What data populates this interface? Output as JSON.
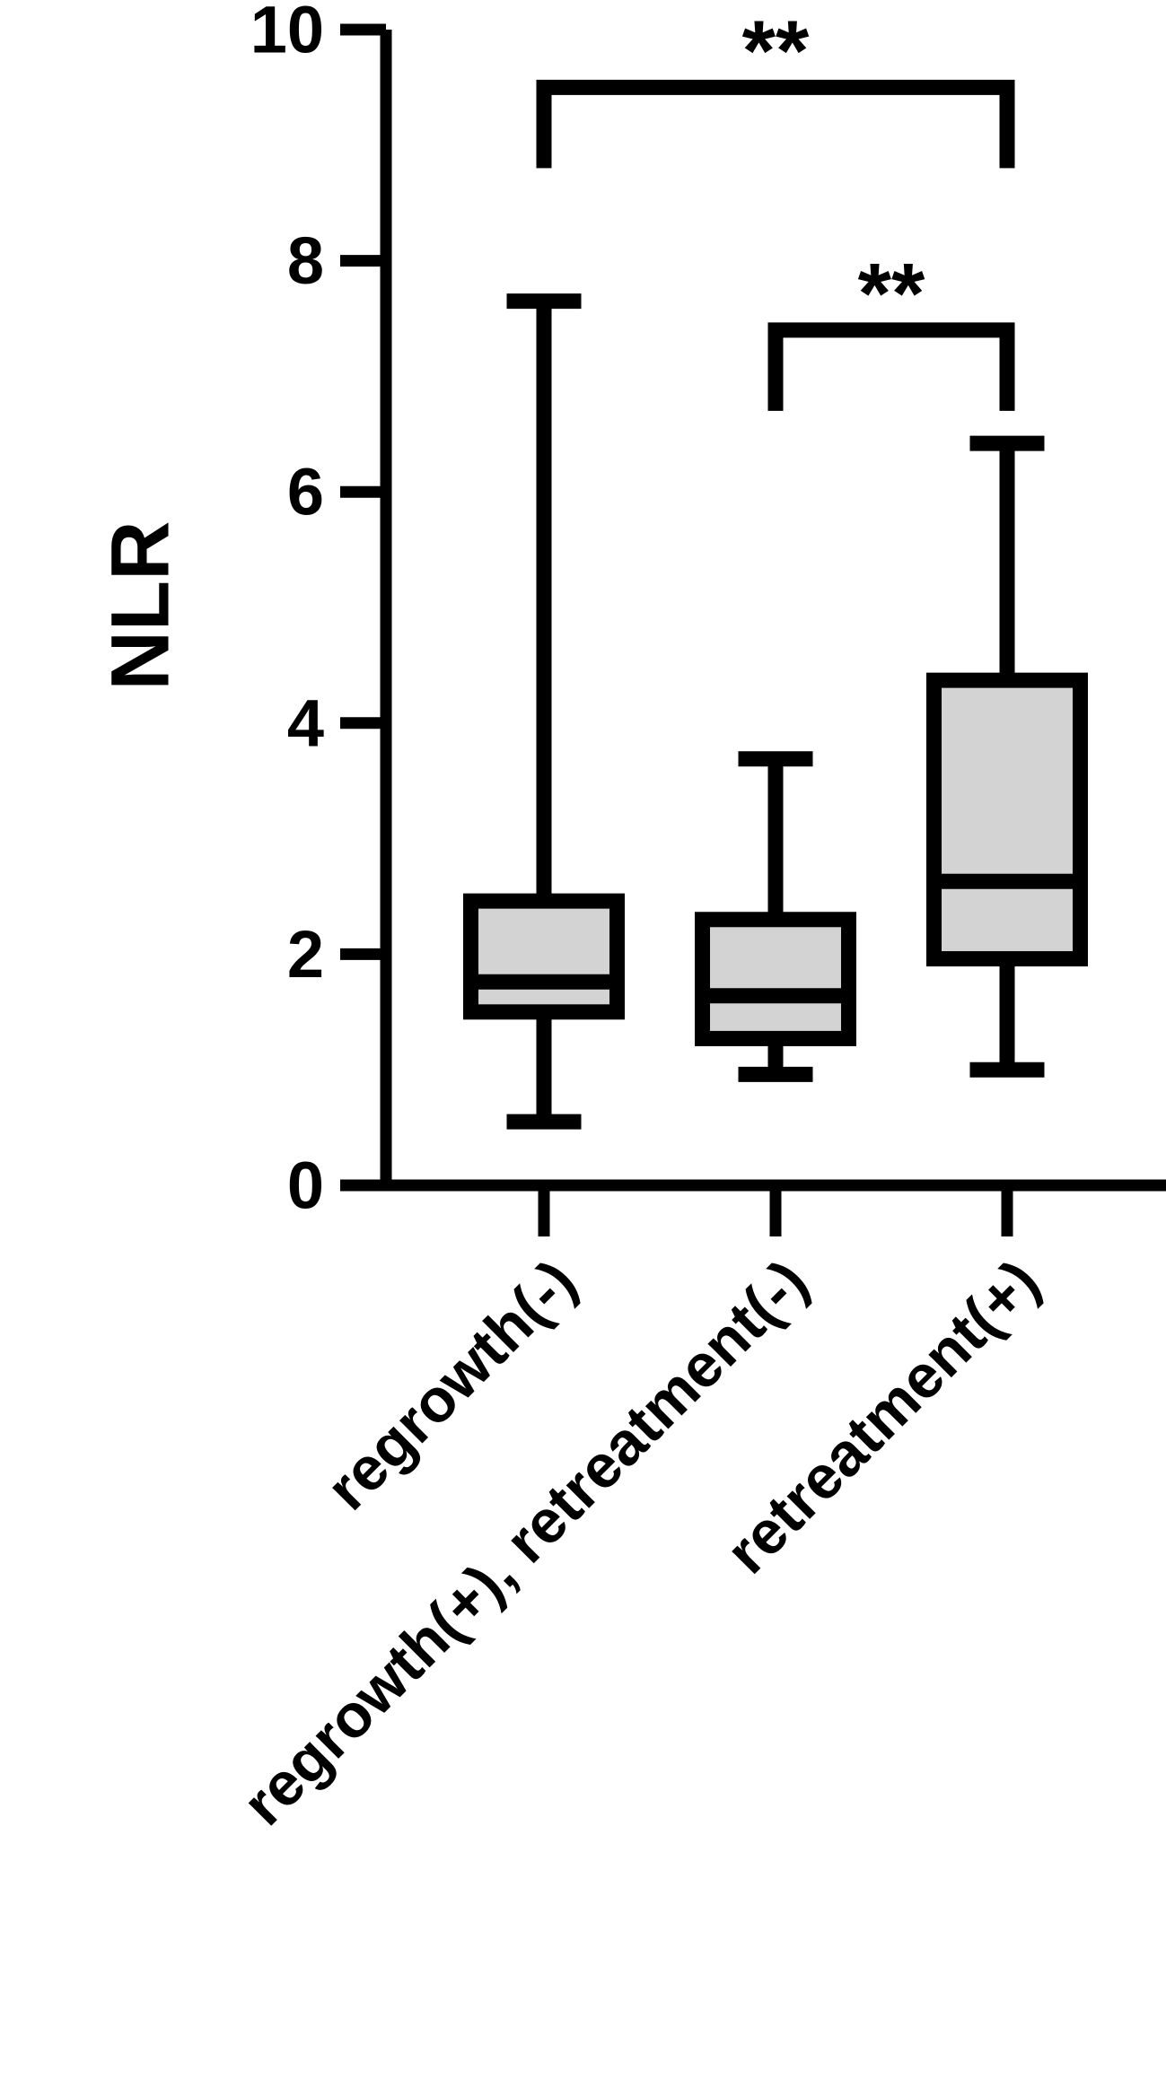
{
  "chart_data": {
    "type": "box",
    "y_label": "NLR",
    "categories": [
      "regrowth(-)",
      "regrowth(+), retreatment(-)",
      "retreatment(+)"
    ],
    "boxes": [
      {
        "min": 0.55,
        "q1": 1.5,
        "median": 1.76,
        "q3": 2.46,
        "max": 7.65
      },
      {
        "min": 0.96,
        "q1": 1.27,
        "median": 1.64,
        "q3": 2.3,
        "max": 3.69
      },
      {
        "min": 1.0,
        "q1": 1.96,
        "median": 2.63,
        "q3": 4.37,
        "max": 6.42
      }
    ],
    "color": "#d3d3d3",
    "ylim": [
      0,
      10
    ],
    "yticks": [
      0,
      2,
      4,
      6,
      8,
      10
    ],
    "annotations": [
      {
        "text": "**",
        "from": 0,
        "to": 2,
        "y": 9.5
      },
      {
        "text": "**",
        "from": 1,
        "to": 2,
        "y": 7.4
      }
    ]
  }
}
